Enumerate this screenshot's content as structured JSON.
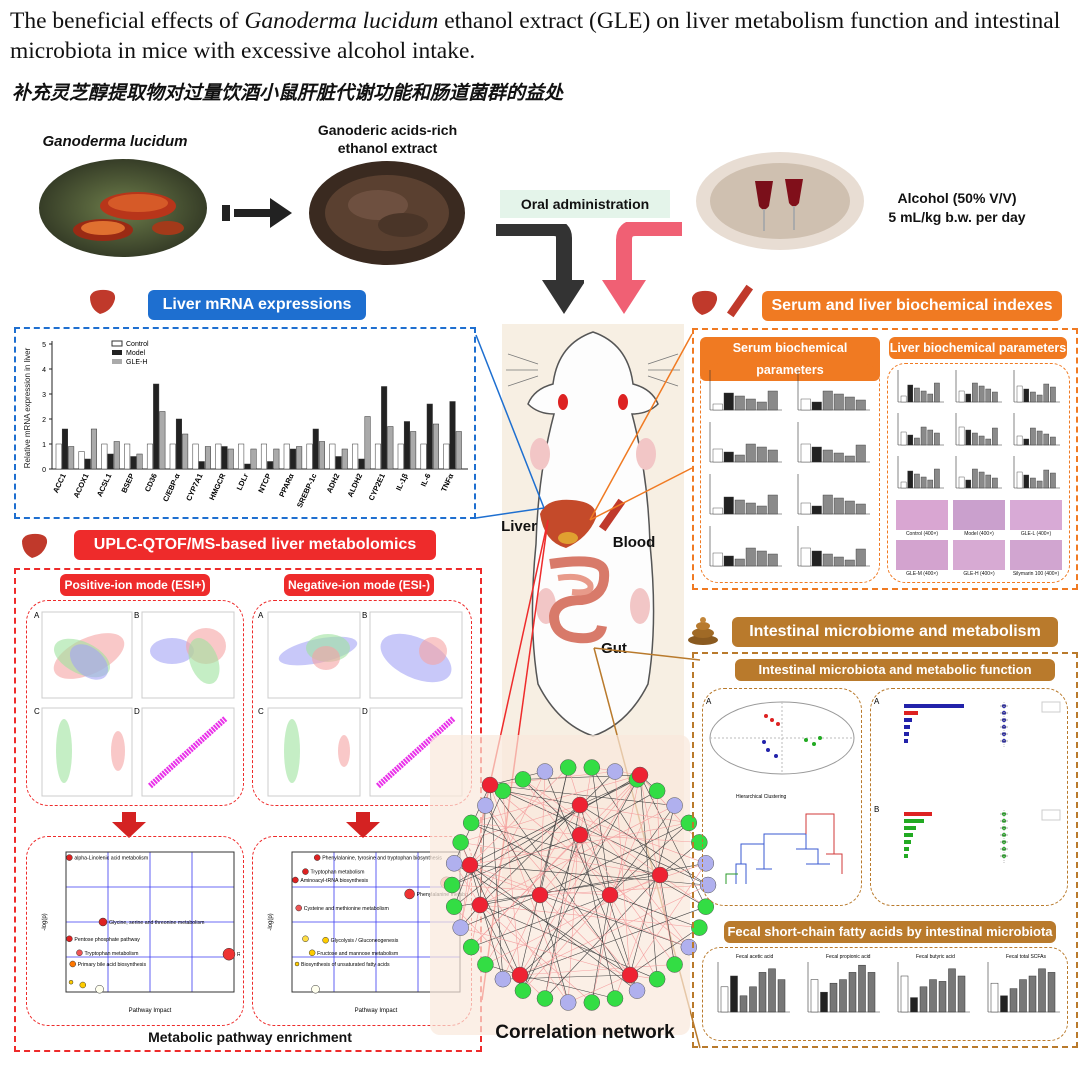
{
  "header": {
    "title_part1": "The beneficial effects of ",
    "title_italic": "Ganoderma lucidum",
    "title_part2": " ethanol extract (GLE) on liver metabolism function and intestinal microbiota in mice with excessive alcohol intake.",
    "subtitle_cn": "补充灵芝醇提取物对过量饮酒小鼠肝脏代谢功能和肠道菌群的益处"
  },
  "top": {
    "ganoderma_label": "Ganoderma lucidum",
    "extract_label_line1": "Ganoderic acids-rich",
    "extract_label_line2": "ethanol extract",
    "oral_label": "Oral administration",
    "alcohol_line1": "Alcohol (50% V/V)",
    "alcohol_line2": "5 mL/kg b.w. per day"
  },
  "mrna": {
    "title": "Liver mRNA expressions",
    "ylabel": "Relative mRNA expression in liver",
    "legend": [
      "Control",
      "Model",
      "GLE-H"
    ]
  },
  "biochem": {
    "title": "Serum and liver biochemical indexes",
    "serum_title": "Serum biochemical parameters",
    "liver_title": "Liver biochemical parameters",
    "histo_labels": [
      "Control (400×)",
      "Model (400×)",
      "GLE-L (400×)",
      "GLE-M (400×)",
      "GLE-H (400×)",
      "Silymarin 100 (400×)"
    ]
  },
  "metabolomics": {
    "title": "UPLC-QTOF/MS-based liver metabolomics",
    "pos_title": "Positive-ion mode (ESI+)",
    "neg_title": "Negative-ion mode (ESI-)",
    "pathway_title": "Metabolic pathway enrichment",
    "panel_letters": [
      "A",
      "B",
      "C",
      "D"
    ],
    "pos_pathways": [
      "alpha-Linolenic acid metabolism",
      "Glycine, serine and threonine metabolism",
      "Pentose phosphate pathway",
      "Riboflavin metabolism",
      "Tryptophan metabolism",
      "Primary bile acid biosynthesis"
    ],
    "neg_pathways": [
      "Phenylalanine, tyrosine and tryptophan biosynthesis",
      "Tryptophan metabolism",
      "Aminoacyl-tRNA biosynthesis",
      "Phenylalanine metabolism",
      "Cysteine and methionine metabolism",
      "Glycolysis / Gluconeogenesis",
      "Fructose and mannose metabolism",
      "Biosynthesis of unsaturated fatty acids"
    ],
    "xlabel": "Pathway Impact",
    "ylabel": "-log(p)"
  },
  "center": {
    "liver_label": "Liver",
    "blood_label": "Blood",
    "gut_label": "Gut",
    "network_title": "Correlation network"
  },
  "microbiome": {
    "title": "Intestinal microbiome and metabolism",
    "sub_title": "Intestinal microbiota and metabolic function",
    "scfa_title": "Fecal short-chain fatty acids by intestinal microbiota",
    "cluster_title": "Hierarchical Clustering",
    "scfa_panels": [
      "Fecal acetic acid",
      "Fecal propionic acid",
      "Fecal butyric acid",
      "Fecal total SCFAs"
    ]
  },
  "colors": {
    "blue_pill": "#1e6fd0",
    "red_pill": "#ee2b2b",
    "orange_pill": "#f07a22",
    "brown_pill": "#b97a2c",
    "green_box": "#e5f3ea"
  }
}
